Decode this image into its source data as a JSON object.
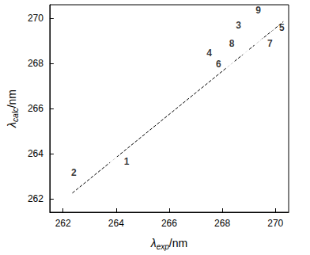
{
  "chart_data": {
    "type": "scatter",
    "x_label": "λexp/nm",
    "y_label": "λcalc/nm",
    "xlim": [
      261.5,
      270.5
    ],
    "xticks": [
      262,
      264,
      266,
      268,
      270
    ],
    "ylim": [
      261.4,
      270.6
    ],
    "yticks": [
      262,
      264,
      266,
      268,
      270
    ],
    "grid": false,
    "series": [
      {
        "type": "scatter",
        "marker": "circle",
        "color": "#000000",
        "x": [
          263.95,
          262.85,
          269.05,
          267.95,
          269.8,
          268.3,
          269.35,
          268.8,
          269.8
        ],
        "values": [
          263.65,
          263.15,
          269.35,
          268.4,
          269.65,
          267.95,
          268.95,
          268.6,
          270.0
        ],
        "labels": [
          "1",
          "2",
          "3",
          "4",
          "5",
          "6",
          "7",
          "8",
          "9"
        ]
      },
      {
        "type": "line",
        "line_style": "dashed",
        "color": "#000000",
        "x": [
          262.35,
          270.3
        ],
        "values": [
          262.25,
          269.85
        ]
      }
    ]
  }
}
